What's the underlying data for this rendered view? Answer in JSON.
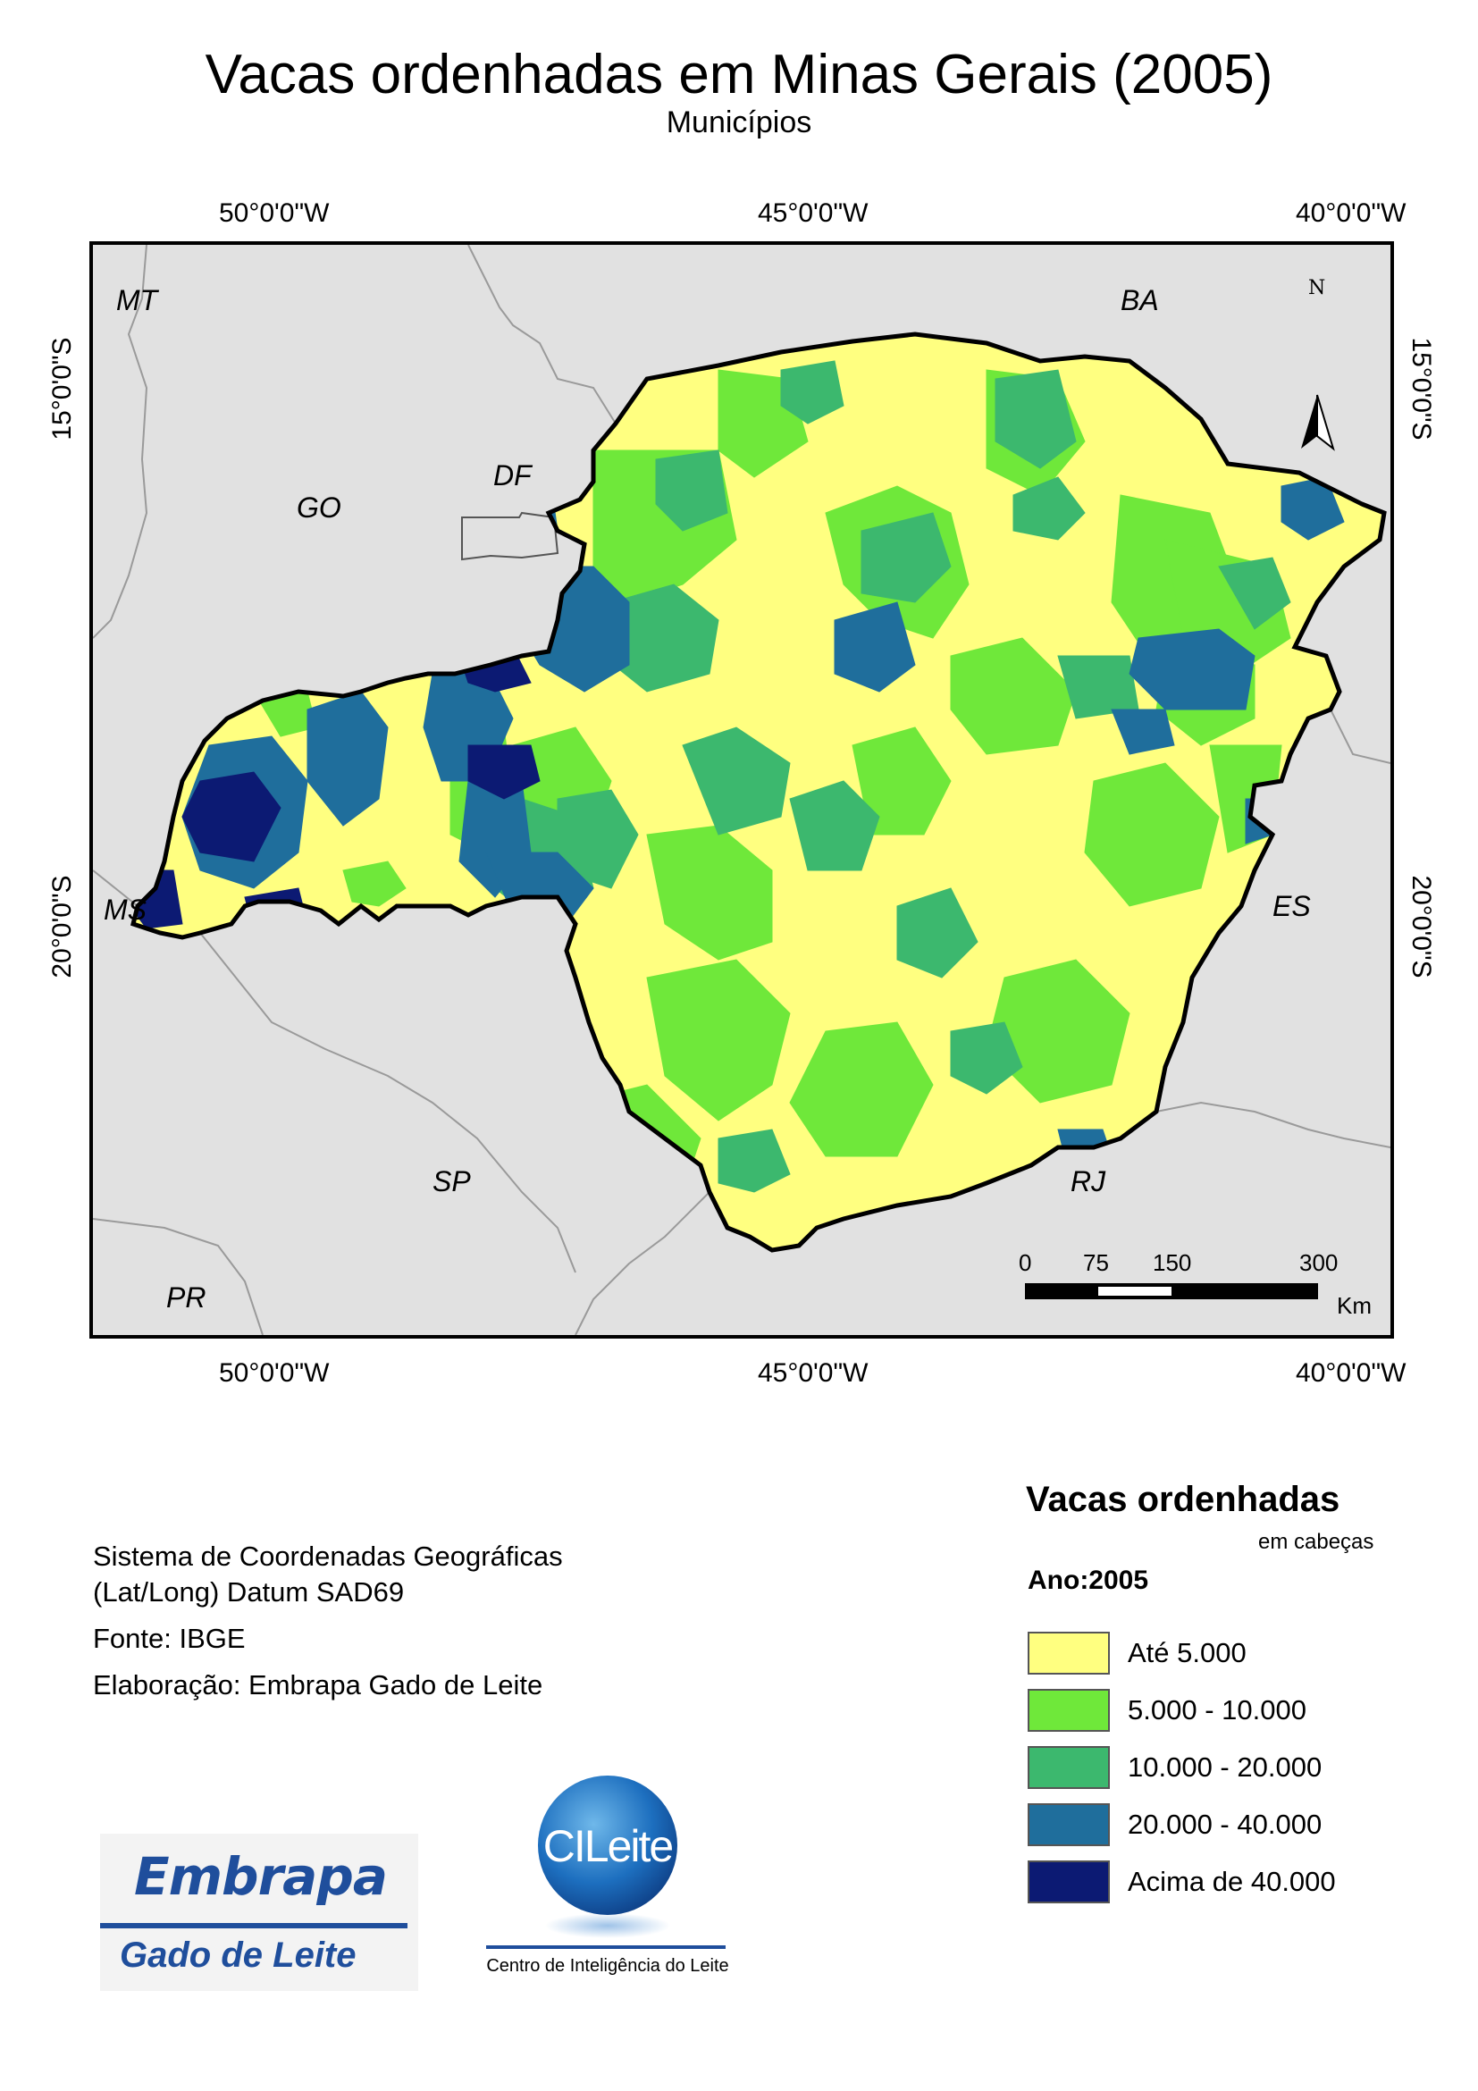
{
  "title": "Vacas ordenhadas em Minas Gerais (2005)",
  "subtitle": "Municípios",
  "coords": {
    "top": [
      "50°0'0\"W",
      "45°0'0\"W",
      "40°0'0\"W"
    ],
    "bottom": [
      "50°0'0\"W",
      "45°0'0\"W",
      "40°0'0\"W"
    ],
    "left": [
      "15°0'0\"S",
      "20°0'0\"S"
    ],
    "right": [
      "15°0'0\"S",
      "20°0'0\"S"
    ]
  },
  "states": [
    "MT",
    "BA",
    "DF",
    "GO",
    "MS",
    "ES",
    "SP",
    "RJ",
    "PR"
  ],
  "north_label": "N",
  "scale": {
    "ticks": [
      "0",
      "75",
      "150",
      "300"
    ],
    "unit": "Km"
  },
  "notes": {
    "coord_system_line1": "Sistema de Coordenadas Geográficas",
    "coord_system_line2": "(Lat/Long) Datum SAD69",
    "source": "Fonte: IBGE",
    "author": "Elaboração: Embrapa Gado de Leite"
  },
  "legend": {
    "title": "Vacas ordenhadas",
    "unit": "em cabeças",
    "year": "Ano:2005",
    "classes": [
      {
        "label": "Até 5.000",
        "color": "#ffff80"
      },
      {
        "label": "5.000 - 10.000",
        "color": "#6fe83a"
      },
      {
        "label": "10.000 - 20.000",
        "color": "#3cb86e"
      },
      {
        "label": "20.000 - 40.000",
        "color": "#1f6e9c"
      },
      {
        "label": "Acima de 40.000",
        "color": "#0c1a73"
      }
    ]
  },
  "logos": {
    "embrapa_word": "Embrapa",
    "embrapa_sub": "Gado de Leite",
    "cileite_word": "CILeite",
    "cileite_sub": "Centro de Inteligência do Leite"
  }
}
